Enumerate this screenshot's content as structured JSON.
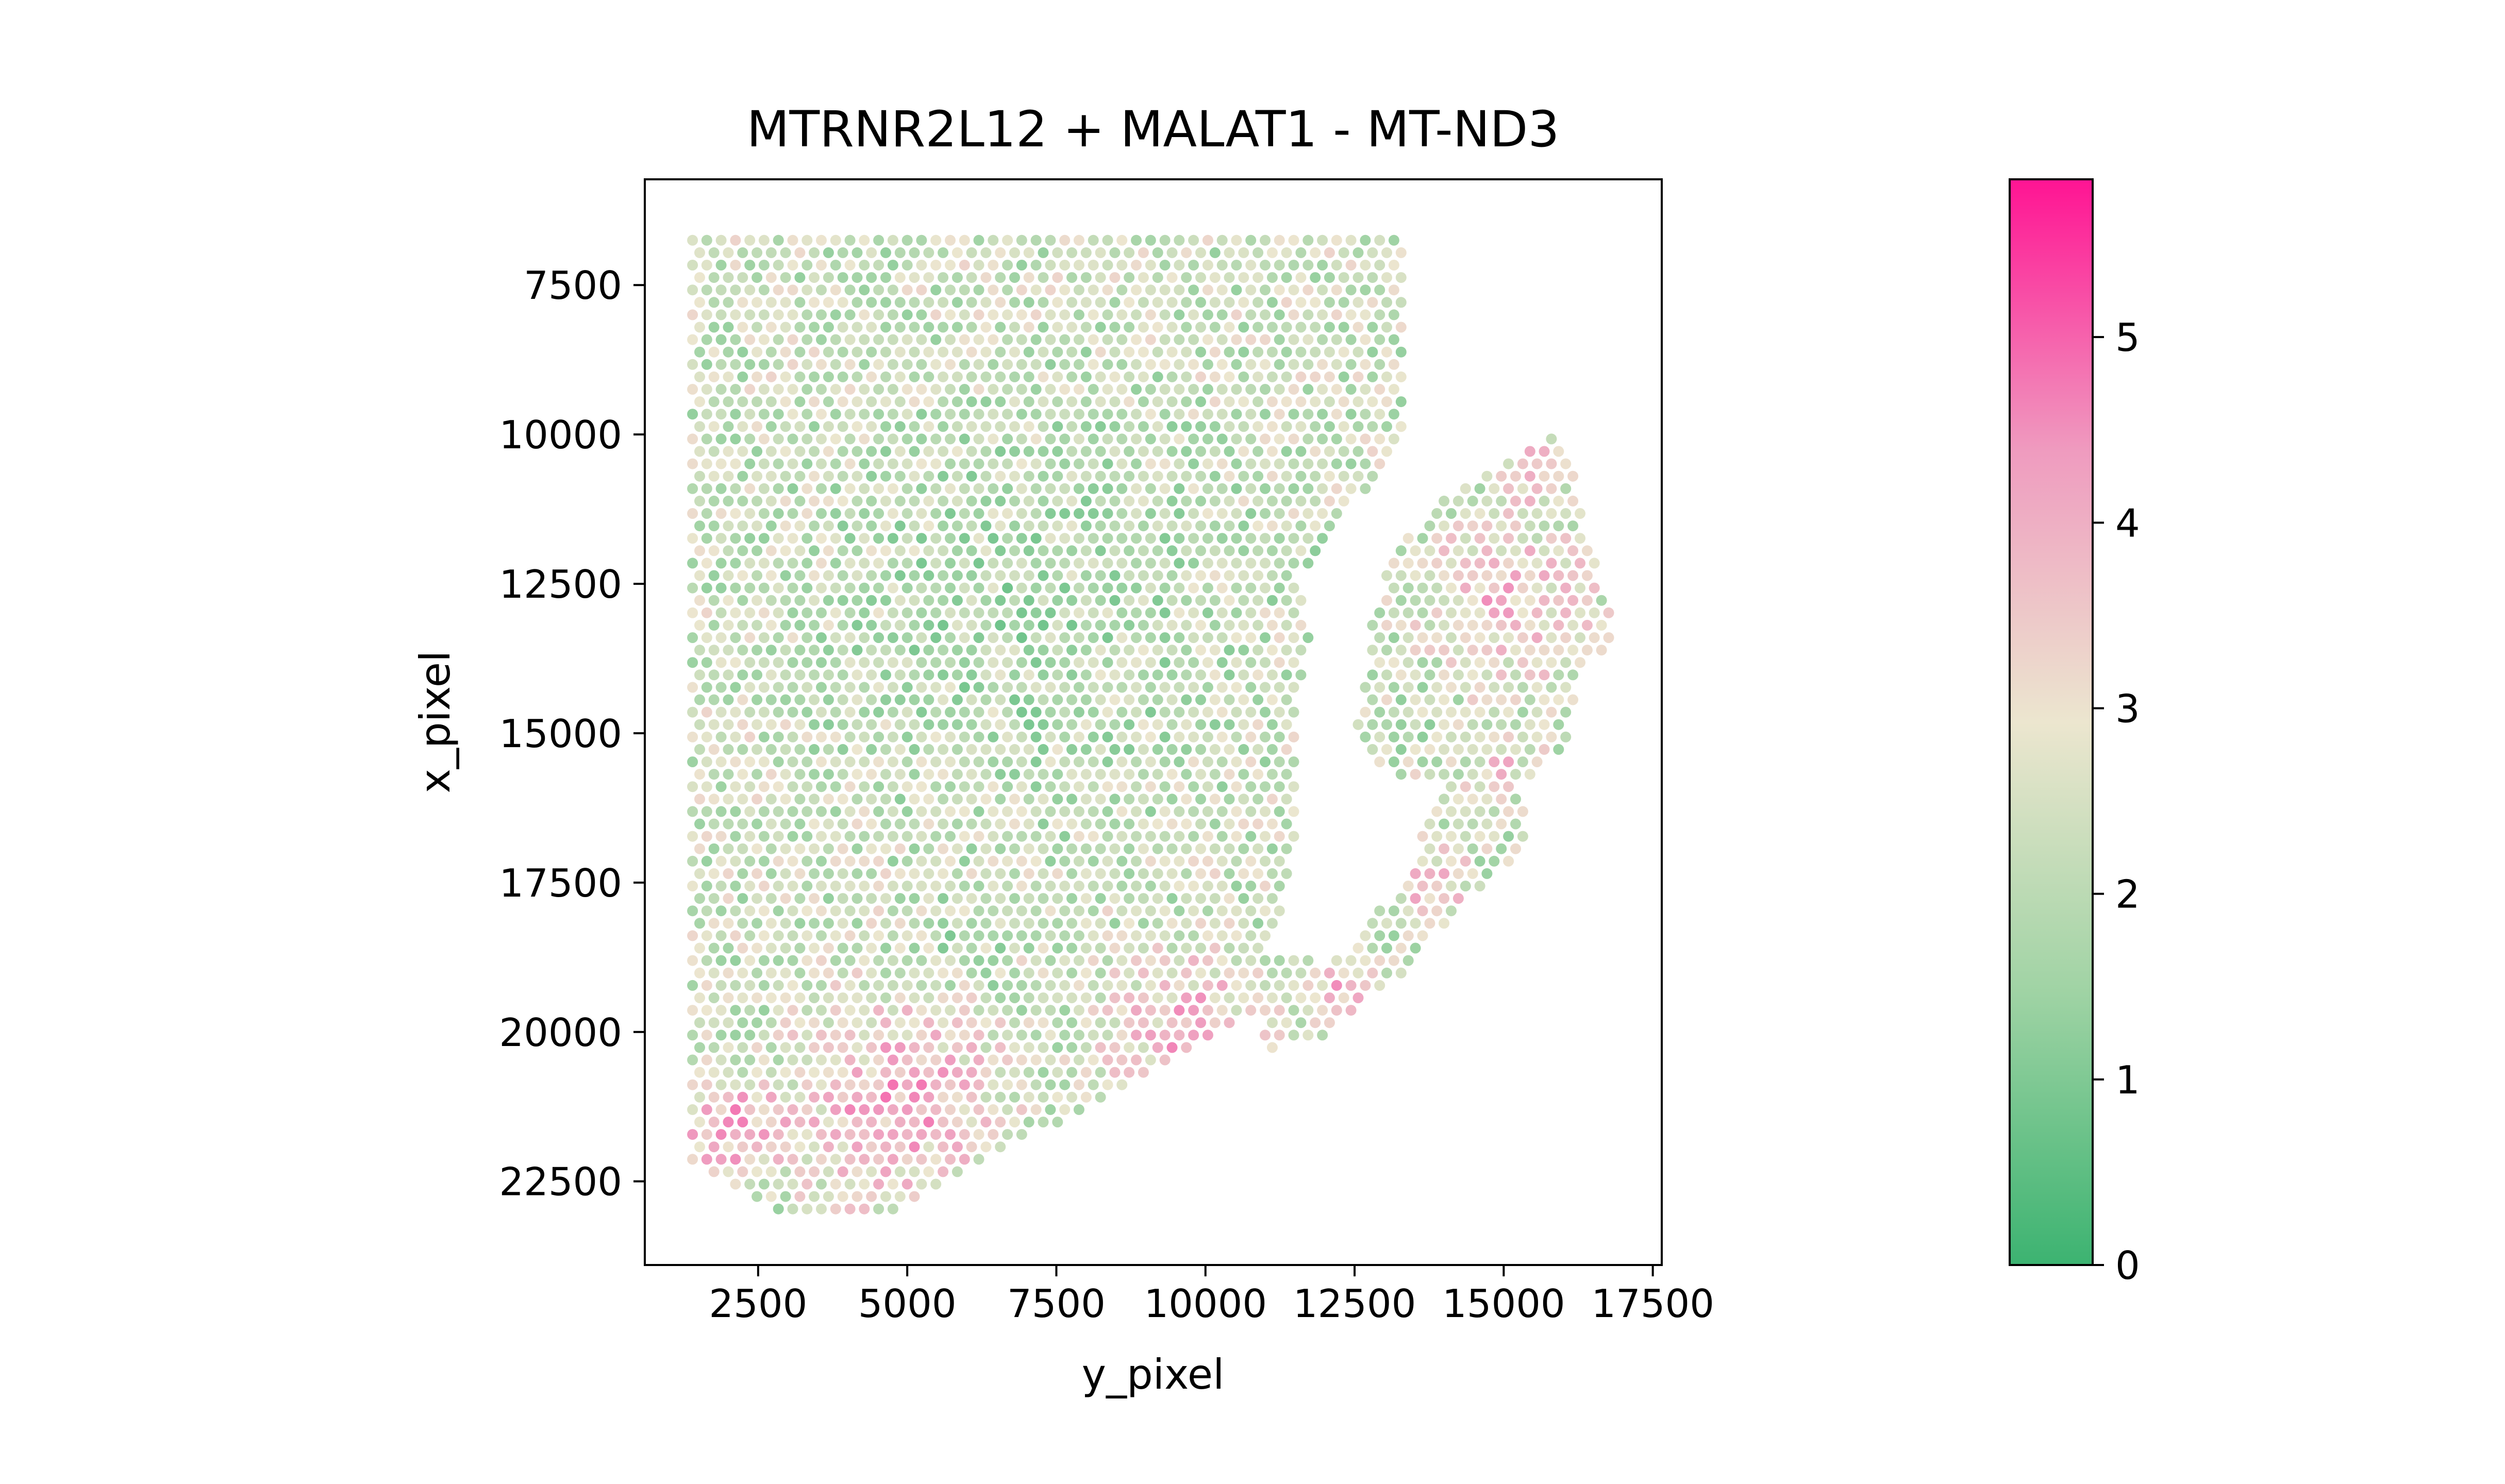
{
  "chart_data": {
    "type": "scatter",
    "title": "MTRNR2L12 + MALAT1 - MT-ND3",
    "xlabel": "y_pixel",
    "ylabel": "x_pixel",
    "xlim": [
      600,
      17650
    ],
    "ylim": [
      23900,
      5730
    ],
    "y_inverted": true,
    "xticks": [
      2500,
      5000,
      7500,
      10000,
      12500,
      15000,
      17500
    ],
    "xtick_labels": [
      "2500",
      "5000",
      "7500",
      "10000",
      "12500",
      "15000",
      "17500"
    ],
    "yticks": [
      7500,
      10000,
      12500,
      15000,
      17500,
      20000,
      22500
    ],
    "ytick_labels": [
      "7500",
      "10000",
      "12500",
      "15000",
      "17500",
      "20000",
      "22500"
    ],
    "grid": false,
    "legend": "none",
    "colorbar": {
      "min": 0,
      "max": 5.85,
      "ticks": [
        0,
        1,
        2,
        3,
        4,
        5
      ],
      "tick_labels": [
        "0",
        "1",
        "2",
        "3",
        "4",
        "5"
      ],
      "colors": [
        "#3cb371",
        "#9fd3a4",
        "#ece6cf",
        "#ef9bbf",
        "#ff1493"
      ]
    },
    "spot_spacing": 240,
    "mask_outlines": [
      [
        [
          1400,
          6750
        ],
        [
          13300,
          6750
        ],
        [
          13300,
          10100
        ],
        [
          11900,
          12000
        ],
        [
          11850,
          13100
        ],
        [
          11500,
          14800
        ],
        [
          11650,
          16900
        ],
        [
          11300,
          19000
        ],
        [
          10900,
          19700
        ],
        [
          9000,
          20700
        ],
        [
          4600,
          23100
        ],
        [
          2700,
          23000
        ],
        [
          1400,
          22200
        ]
      ],
      [
        [
          13100,
          12000
        ],
        [
          14300,
          10800
        ],
        [
          15900,
          9950
        ],
        [
          16200,
          10800
        ],
        [
          16900,
          13400
        ],
        [
          16300,
          14000
        ],
        [
          16000,
          15300
        ],
        [
          14900,
          16100
        ],
        [
          12500,
          15500
        ],
        [
          12300,
          14800
        ]
      ],
      [
        [
          11700,
          15800
        ],
        [
          12800,
          15700
        ],
        [
          13000,
          15000
        ],
        [
          12300,
          14900
        ]
      ],
      [
        [
          10900,
          18700
        ],
        [
          12700,
          18100
        ],
        [
          13600,
          16500
        ],
        [
          14200,
          15800
        ],
        [
          15400,
          16100
        ],
        [
          15300,
          17000
        ],
        [
          14400,
          17800
        ],
        [
          13300,
          19000
        ],
        [
          12000,
          20100
        ],
        [
          11000,
          20300
        ]
      ]
    ],
    "hole": [
      [
        11500,
        12300
      ],
      [
        11800,
        13500
      ],
      [
        11700,
        16000
      ],
      [
        11100,
        18600
      ],
      [
        12100,
        18900
      ],
      [
        13300,
        17500
      ],
      [
        13900,
        16100
      ],
      [
        12800,
        15600
      ],
      [
        12500,
        14800
      ],
      [
        12800,
        13700
      ],
      [
        12300,
        12400
      ]
    ],
    "hotspots": [
      {
        "x": 4800,
        "y": 21200,
        "r": 2600,
        "value": 4.2
      },
      {
        "x": 9800,
        "y": 20000,
        "r": 2000,
        "value": 4.0
      },
      {
        "x": 2000,
        "y": 21600,
        "r": 1300,
        "value": 4.5
      },
      {
        "x": 12300,
        "y": 19300,
        "r": 1000,
        "value": 3.8
      },
      {
        "x": 13800,
        "y": 17500,
        "r": 900,
        "value": 4.0
      },
      {
        "x": 15100,
        "y": 12800,
        "r": 2000,
        "value": 3.9
      },
      {
        "x": 15500,
        "y": 10600,
        "r": 900,
        "value": 3.6
      },
      {
        "x": 15000,
        "y": 15500,
        "r": 900,
        "value": 3.3
      }
    ],
    "coldspots": [
      {
        "x": 7000,
        "y": 13000,
        "r": 5000,
        "value": 1.3
      },
      {
        "x": 11800,
        "y": 12300,
        "r": 900,
        "value": 1.0
      },
      {
        "x": 5900,
        "y": 18600,
        "r": 1100,
        "value": 1.5
      },
      {
        "x": 13500,
        "y": 14900,
        "r": 700,
        "value": 1.2
      }
    ],
    "baseline_value": 2.3
  }
}
